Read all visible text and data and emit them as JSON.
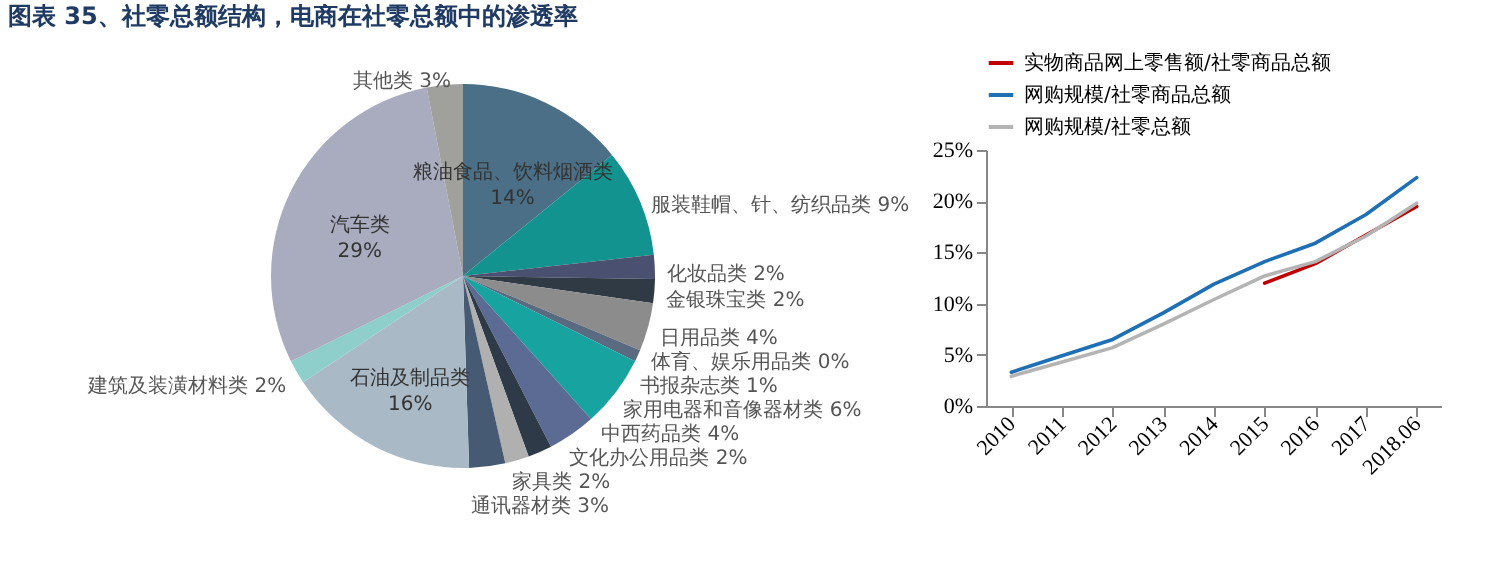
{
  "chart_data": [
    {
      "type": "pie",
      "title": "图表 35、社零总额结构，电商在社零总额中的渗透率",
      "categories": [
        "粮油食品、饮料烟酒类",
        "服装鞋帽、针、纺织品类",
        "化妆品类",
        "金银珠宝类",
        "日用品类",
        "体育、娱乐用品类",
        "书报杂志类",
        "家用电器和音像器材类",
        "中西药品类",
        "文化办公用品类",
        "家具类",
        "通讯器材类",
        "石油及制品类",
        "建筑及装潢材料类",
        "汽车类",
        "其他类"
      ],
      "values": [
        14,
        9,
        2,
        2,
        4,
        0,
        1,
        6,
        4,
        2,
        2,
        3,
        16,
        2,
        29,
        3
      ],
      "value_labels": [
        "14%",
        "9%",
        "2%",
        "2%",
        "4%",
        "0%",
        "1%",
        "6%",
        "4%",
        "2%",
        "2%",
        "3%",
        "16%",
        "2%",
        "29%",
        "3%"
      ],
      "colors": [
        "#4a6f86",
        "#12938f",
        "#4a5070",
        "#2f3a45",
        "#8c8c8c",
        "#1a4d8a",
        "#5a6a80",
        "#17a3a0",
        "#5c6b93",
        "#2f3a48",
        "#b0b0b0",
        "#465a73",
        "#a9b9c6",
        "#8fcfcb",
        "#a8acbe",
        "#a0a09c"
      ]
    },
    {
      "type": "line",
      "categories": [
        "2010",
        "2011",
        "2012",
        "2013",
        "2014",
        "2015",
        "2016",
        "2017",
        "2018.06"
      ],
      "series": [
        {
          "name": "实物商品网上零售额/社零商品总额",
          "color": "#c00000",
          "values": [
            null,
            null,
            null,
            null,
            null,
            12.0,
            13.9,
            16.7,
            19.5
          ]
        },
        {
          "name": "网购规模/社零商品总额",
          "color": "#1f6fb5",
          "values": [
            3.3,
            4.9,
            6.5,
            9.1,
            11.9,
            14.1,
            15.9,
            18.7,
            22.3
          ]
        },
        {
          "name": "网购规模/社零总额",
          "color": "#b4b4b4",
          "values": [
            2.9,
            4.3,
            5.7,
            8.0,
            10.4,
            12.7,
            14.1,
            16.6,
            19.8
          ]
        }
      ],
      "ylim": [
        0,
        25
      ],
      "yticks": [
        {
          "value": 0,
          "label": "0%"
        },
        {
          "value": 5,
          "label": "5%"
        },
        {
          "value": 10,
          "label": "10%"
        },
        {
          "value": 15,
          "label": "15%"
        },
        {
          "value": 20,
          "label": "20%"
        },
        {
          "value": 25,
          "label": "25%"
        }
      ],
      "legend": "top",
      "grid": false
    }
  ]
}
